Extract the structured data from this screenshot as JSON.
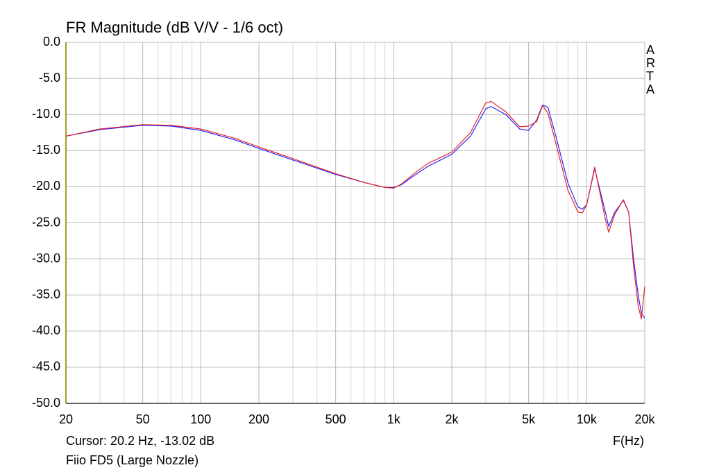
{
  "chart_data": {
    "type": "line",
    "title": "FR Magnitude (dB V/V - 1/6 oct)",
    "watermark": "ARTA",
    "cursor": "Cursor: 20.2 Hz, -13.02 dB",
    "x_label": "F(Hz)",
    "caption": "Fiio FD5 (Large Nozzle)",
    "xlog": true,
    "grid": true,
    "xlim": [
      20,
      20000
    ],
    "xticks": [
      20,
      50,
      100,
      200,
      500,
      {
        "value": 1000,
        "label": "1k"
      },
      {
        "value": 2000,
        "label": "2k"
      },
      {
        "value": 5000,
        "label": "5k"
      },
      {
        "value": 10000,
        "label": "10k"
      },
      {
        "value": 20000,
        "label": "20k"
      }
    ],
    "xminor": [
      30,
      40,
      60,
      70,
      80,
      90,
      300,
      400,
      600,
      700,
      800,
      900,
      3000,
      4000,
      6000,
      7000,
      8000,
      9000
    ],
    "ylim": [
      -50,
      0
    ],
    "yticks": [
      {
        "value": 0,
        "label": "0.0"
      },
      {
        "value": -5,
        "label": "-5.0"
      },
      {
        "value": -10,
        "label": "-10.0"
      },
      {
        "value": -15,
        "label": "-15.0"
      },
      {
        "value": -20,
        "label": "-20.0"
      },
      {
        "value": -25,
        "label": "-25.0"
      },
      {
        "value": -30,
        "label": "-30.0"
      },
      {
        "value": -35,
        "label": "-35.0"
      },
      {
        "value": -40,
        "label": "-40.0"
      },
      {
        "value": -45,
        "label": "-45.0"
      },
      {
        "value": -50,
        "label": "-50.0"
      }
    ],
    "x": [
      20,
      30,
      50,
      70,
      100,
      150,
      200,
      300,
      500,
      700,
      900,
      1000,
      1100,
      1300,
      1500,
      2000,
      2500,
      3000,
      3200,
      3800,
      4500,
      5000,
      5500,
      5900,
      6300,
      7000,
      8000,
      9000,
      9500,
      10000,
      11000,
      12500,
      13000,
      14000,
      15500,
      16500,
      17500,
      18500,
      19200,
      20000
    ],
    "series": [
      {
        "color": "#2424ff",
        "values": [
          -13.0,
          -12.1,
          -11.5,
          -11.6,
          -12.2,
          -13.5,
          -14.7,
          -16.3,
          -18.3,
          -19.4,
          -20.1,
          -20.1,
          -19.7,
          -18.3,
          -17.2,
          -15.5,
          -13.0,
          -9.2,
          -8.9,
          -10.0,
          -12.0,
          -12.2,
          -10.8,
          -8.7,
          -9.0,
          -13.5,
          -19.5,
          -22.8,
          -23.1,
          -22.5,
          -17.5,
          -23.5,
          -25.5,
          -23.5,
          -21.9,
          -23.5,
          -30.0,
          -35.0,
          -37.5,
          -38.2
        ]
      },
      {
        "color": "#e82020",
        "values": [
          -13.0,
          -12.0,
          -11.4,
          -11.5,
          -12.0,
          -13.3,
          -14.5,
          -16.1,
          -18.2,
          -19.4,
          -20.1,
          -20.2,
          -19.6,
          -18.0,
          -16.8,
          -15.2,
          -12.5,
          -8.4,
          -8.2,
          -9.6,
          -11.7,
          -11.6,
          -11.0,
          -8.8,
          -9.8,
          -14.5,
          -20.5,
          -23.5,
          -23.6,
          -22.5,
          -17.3,
          -24.5,
          -26.3,
          -23.8,
          -21.8,
          -23.5,
          -31.0,
          -36.5,
          -38.3,
          -33.8
        ]
      }
    ]
  }
}
